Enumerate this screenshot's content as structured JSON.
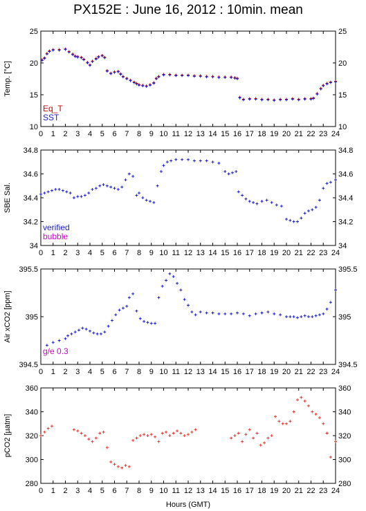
{
  "title": "PX152E : June 16, 2012 : 10min. mean",
  "xlabel": "Hours (GMT)",
  "x_ticks": [
    0,
    1,
    2,
    3,
    4,
    5,
    6,
    7,
    8,
    9,
    10,
    11,
    12,
    13,
    14,
    15,
    16,
    17,
    18,
    19,
    20,
    21,
    22,
    23,
    24
  ],
  "colors": {
    "eq_t": "#cc0000",
    "sst": "#1a1acc",
    "verified": "#1a1acc",
    "bubble": "#cc00cc",
    "air": "#1a1acc",
    "pco2": "#e8312a",
    "note": "#cc00cc"
  },
  "chart_data": [
    {
      "type": "scatter",
      "ylabel": "Temp. [°C]",
      "xlim": [
        0,
        24
      ],
      "ylim": [
        10,
        25
      ],
      "y_ticks": [
        10,
        15,
        20,
        25
      ],
      "legend": [
        "Eq_T",
        "SST"
      ],
      "legend_position": "bottom-left",
      "series": [
        {
          "name": "Eq_T",
          "x": [
            0.1,
            0.3,
            0.5,
            0.7,
            1,
            1.5,
            2,
            2.3,
            2.6,
            2.8,
            3,
            3.3,
            3.5,
            3.8,
            4,
            4.2,
            4.5,
            4.7,
            5,
            5.2,
            5.4,
            5.7,
            6,
            6.3,
            6.5,
            6.7,
            7,
            7.3,
            7.6,
            7.8,
            8,
            8.3,
            8.6,
            8.9,
            9.2,
            9.4,
            9.6,
            10,
            10.5,
            11,
            11.5,
            12,
            12.5,
            13,
            13.5,
            14,
            14.5,
            15,
            15.5,
            15.8,
            16,
            16.2,
            16.5,
            17,
            17.5,
            18,
            18.5,
            19,
            19.5,
            20,
            20.5,
            21,
            21.5,
            22,
            22.2,
            22.5,
            22.8,
            23,
            23.3,
            23.6,
            24
          ],
          "y": [
            20.5,
            20.8,
            21.5,
            21.9,
            22.1,
            22.1,
            22.2,
            21.8,
            21.4,
            21.1,
            21.0,
            20.9,
            20.6,
            20.1,
            19.7,
            20.3,
            20.7,
            21.0,
            21.2,
            20.9,
            18.8,
            18.4,
            18.6,
            18.7,
            18.3,
            17.9,
            17.6,
            17.3,
            17.0,
            16.8,
            16.6,
            16.5,
            16.4,
            16.6,
            16.9,
            17.6,
            17.9,
            18.2,
            18.2,
            18.1,
            18.1,
            18.1,
            18.0,
            18.0,
            17.9,
            17.9,
            17.8,
            17.8,
            17.8,
            17.7,
            17.6,
            14.6,
            14.3,
            14.4,
            14.4,
            14.3,
            14.3,
            14.2,
            14.3,
            14.3,
            14.4,
            14.3,
            14.4,
            14.4,
            14.5,
            15.2,
            16.0,
            16.5,
            16.8,
            17.0,
            17.1
          ]
        },
        {
          "name": "SST",
          "x": [
            0.1,
            0.3,
            0.5,
            0.7,
            1,
            1.5,
            2,
            2.3,
            2.6,
            2.8,
            3,
            3.3,
            3.5,
            3.8,
            4,
            4.2,
            4.5,
            4.7,
            5,
            5.2,
            5.4,
            5.7,
            6,
            6.3,
            6.5,
            6.7,
            7,
            7.3,
            7.6,
            7.8,
            8,
            8.3,
            8.6,
            8.9,
            9.2,
            9.4,
            9.6,
            10,
            10.5,
            11,
            11.5,
            12,
            12.5,
            13,
            13.5,
            14,
            14.5,
            15,
            15.5,
            15.8,
            16,
            16.2,
            16.5,
            17,
            17.5,
            18,
            18.5,
            19,
            19.5,
            20,
            20.5,
            21,
            21.5,
            22,
            22.2,
            22.5,
            22.8,
            23,
            23.3,
            23.6,
            24
          ],
          "y": [
            20.4,
            20.7,
            21.4,
            21.8,
            22.0,
            22.0,
            22.1,
            21.7,
            21.3,
            21.0,
            20.9,
            20.8,
            20.5,
            20.0,
            19.6,
            20.2,
            20.6,
            20.9,
            21.1,
            20.8,
            18.7,
            18.3,
            18.5,
            18.6,
            18.2,
            17.8,
            17.5,
            17.2,
            16.9,
            16.7,
            16.5,
            16.4,
            16.3,
            16.5,
            16.8,
            17.5,
            17.8,
            18.1,
            18.1,
            18.0,
            18.0,
            18.0,
            17.9,
            17.9,
            17.8,
            17.8,
            17.7,
            17.7,
            17.7,
            17.6,
            17.5,
            14.5,
            14.2,
            14.3,
            14.3,
            14.2,
            14.2,
            14.1,
            14.2,
            14.2,
            14.3,
            14.2,
            14.3,
            14.3,
            14.4,
            15.1,
            15.9,
            16.4,
            16.7,
            16.9,
            17.0
          ]
        }
      ]
    },
    {
      "type": "scatter",
      "ylabel": "SBE Sal.",
      "xlim": [
        0,
        24
      ],
      "ylim": [
        34.0,
        34.8
      ],
      "y_ticks": [
        34.0,
        34.2,
        34.4,
        34.6,
        34.8
      ],
      "y_tick_labels": [
        "34",
        "34.2",
        "34.4",
        "34.6",
        "34.8"
      ],
      "legend": [
        "verified",
        "bubble"
      ],
      "legend_position": "bottom-left",
      "series": [
        {
          "name": "verified",
          "x": [
            0,
            0.3,
            0.6,
            0.9,
            1.2,
            1.5,
            1.8,
            2.1,
            2.4,
            2.7,
            3,
            3.3,
            3.6,
            3.9,
            4.2,
            4.5,
            4.8,
            5.1,
            5.4,
            5.7,
            6,
            6.3,
            6.6,
            6.9,
            7.2,
            7.5,
            7.8,
            8,
            8.3,
            8.6,
            8.9,
            9.2,
            9.5,
            9.8,
            10,
            10.3,
            10.6,
            11,
            11.5,
            12,
            12.5,
            13,
            13.5,
            14,
            14.5,
            15,
            15.3,
            15.6,
            15.9,
            16.1,
            16.4,
            16.7,
            17,
            17.3,
            17.6,
            18,
            18.4,
            18.8,
            19.2,
            19.6,
            20,
            20.3,
            20.6,
            20.9,
            21.2,
            21.5,
            21.8,
            22.1,
            22.4,
            22.7,
            23,
            23.3,
            23.6,
            24
          ],
          "y": [
            34.43,
            34.44,
            34.45,
            34.46,
            34.47,
            34.47,
            34.46,
            34.45,
            34.44,
            34.4,
            34.41,
            34.41,
            34.42,
            34.44,
            34.47,
            34.48,
            34.5,
            34.51,
            34.5,
            34.49,
            34.48,
            34.47,
            34.49,
            34.55,
            34.6,
            34.58,
            34.42,
            34.44,
            34.4,
            34.38,
            34.37,
            34.36,
            34.5,
            34.62,
            34.67,
            34.7,
            34.71,
            34.72,
            34.72,
            34.72,
            34.71,
            34.71,
            34.71,
            34.7,
            34.69,
            34.62,
            34.6,
            34.61,
            34.62,
            34.45,
            34.42,
            34.39,
            34.37,
            34.36,
            34.35,
            34.37,
            34.38,
            34.36,
            34.34,
            34.33,
            34.22,
            34.21,
            34.2,
            34.2,
            34.23,
            34.27,
            34.29,
            34.3,
            34.32,
            34.38,
            34.48,
            34.52,
            34.53,
            34.55
          ]
        }
      ]
    },
    {
      "type": "scatter",
      "ylabel": "Air xCO2 [ppm]",
      "xlim": [
        0,
        24
      ],
      "ylim": [
        394.5,
        395.5
      ],
      "y_ticks": [
        394.5,
        395.0,
        395.5
      ],
      "y_tick_labels": [
        "394.5",
        "395",
        "395.5"
      ],
      "annotation": "g/e 0.3",
      "series": [
        {
          "name": "Air xCO2",
          "x": [
            0.5,
            1.0,
            1.5,
            2.0,
            2.2,
            2.5,
            2.8,
            3.1,
            3.4,
            3.7,
            4.0,
            4.3,
            4.6,
            4.9,
            5.2,
            5.5,
            5.8,
            6.1,
            6.4,
            6.7,
            7.0,
            7.2,
            7.5,
            7.8,
            8.1,
            8.4,
            8.7,
            9.0,
            9.3,
            9.6,
            9.9,
            10.2,
            10.5,
            10.8,
            11.1,
            11.4,
            11.7,
            12.0,
            12.3,
            12.6,
            13,
            13.5,
            14,
            14.5,
            15,
            15.5,
            16,
            16.5,
            17,
            17.5,
            18,
            18.5,
            19,
            19.5,
            20,
            20.3,
            20.6,
            20.9,
            21.2,
            21.5,
            21.8,
            22.1,
            22.4,
            22.7,
            23,
            23.3,
            23.6,
            24
          ],
          "y": [
            394.7,
            394.73,
            394.75,
            394.77,
            394.8,
            394.82,
            394.84,
            394.86,
            394.88,
            394.87,
            394.85,
            394.83,
            394.82,
            394.82,
            394.84,
            394.9,
            394.96,
            395.02,
            395.07,
            395.09,
            395.11,
            395.2,
            395.24,
            395.06,
            394.98,
            394.95,
            394.94,
            394.93,
            394.93,
            395.2,
            395.32,
            395.38,
            395.45,
            395.42,
            395.35,
            395.28,
            395.18,
            395.12,
            395.05,
            395.02,
            395.05,
            395.04,
            395.04,
            395.03,
            395.03,
            395.03,
            395.04,
            395.03,
            395.01,
            395.03,
            395.04,
            395.05,
            395.03,
            395.02,
            395.0,
            395.0,
            395.0,
            394.99,
            395.0,
            395.01,
            395.0,
            395.0,
            395.01,
            395.02,
            395.03,
            395.08,
            395.15,
            395.28
          ]
        }
      ]
    },
    {
      "type": "scatter",
      "ylabel": "pCO2 [µatm]",
      "xlim": [
        0,
        24
      ],
      "ylim": [
        280,
        360
      ],
      "y_ticks": [
        280,
        300,
        320,
        340,
        360
      ],
      "series": [
        {
          "name": "pCO2",
          "x": [
            0.0,
            0.3,
            0.6,
            0.9,
            2.7,
            3.0,
            3.3,
            3.6,
            3.9,
            4.2,
            4.5,
            4.8,
            5.1,
            5.4,
            5.7,
            6.0,
            6.3,
            6.6,
            6.9,
            7.2,
            7.5,
            7.8,
            8.1,
            8.4,
            8.7,
            9.0,
            9.3,
            9.6,
            9.9,
            10.2,
            10.5,
            10.8,
            11.1,
            11.4,
            11.7,
            12.0,
            12.3,
            12.6,
            15.5,
            15.8,
            16.1,
            16.4,
            16.7,
            17.0,
            17.3,
            17.6,
            17.9,
            18.2,
            18.5,
            18.8,
            19.1,
            19.4,
            19.7,
            20.0,
            20.3,
            20.6,
            20.9,
            21.2,
            21.5,
            21.8,
            22.1,
            22.4,
            22.7,
            23.0,
            23.3,
            23.6,
            24.0
          ],
          "y": [
            320,
            323,
            326,
            328,
            325,
            324,
            322,
            320,
            317,
            315,
            318,
            322,
            323,
            310,
            298,
            296,
            294,
            293,
            295,
            294,
            316,
            318,
            320,
            321,
            320,
            321,
            319,
            315,
            322,
            323,
            320,
            322,
            324,
            322,
            320,
            321,
            323,
            325,
            318,
            320,
            322,
            315,
            321,
            325,
            318,
            322,
            312,
            314,
            318,
            320,
            336,
            332,
            330,
            330,
            332,
            340,
            350,
            352,
            349,
            345,
            340,
            338,
            335,
            330,
            322,
            302,
            315
          ]
        }
      ]
    }
  ]
}
